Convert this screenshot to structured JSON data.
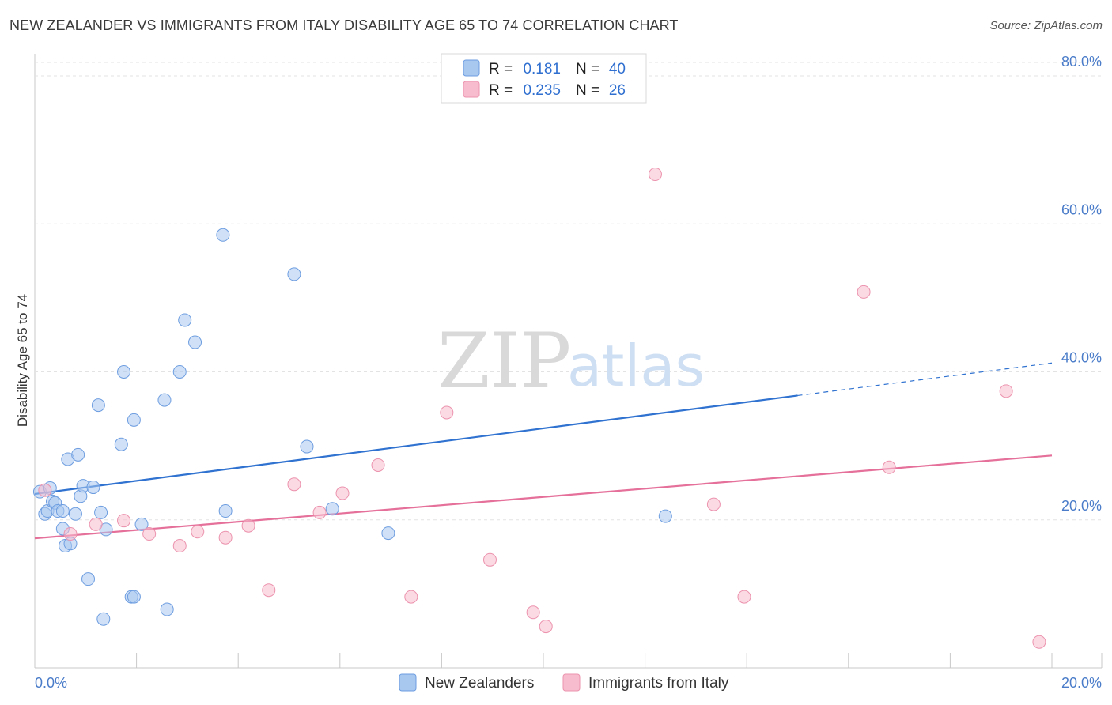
{
  "title": "NEW ZEALANDER VS IMMIGRANTS FROM ITALY DISABILITY AGE 65 TO 74 CORRELATION CHART",
  "source": "Source: ZipAtlas.com",
  "watermark": {
    "zip": "ZIP",
    "atlas": "atlas"
  },
  "legend": {
    "r_label": "R =",
    "n_label": "N =",
    "rows": [
      {
        "r": "0.181",
        "n": "40"
      },
      {
        "r": "0.235",
        "n": "26"
      }
    ]
  },
  "chart_data": {
    "type": "scatter",
    "title": "NEW ZEALANDER VS IMMIGRANTS FROM ITALY DISABILITY AGE 65 TO 74 CORRELATION CHART",
    "xlabel": "",
    "ylabel": "Disability Age 65 to 74",
    "xlim": [
      0,
      20
    ],
    "ylim": [
      0,
      80
    ],
    "x_tick_labels": [
      "0.0%",
      "20.0%"
    ],
    "y_tick_values": [
      20,
      40,
      60,
      80
    ],
    "y_tick_labels": [
      "20.0%",
      "40.0%",
      "60.0%",
      "80.0%"
    ],
    "grid": true,
    "legend_position": "top-center",
    "series": [
      {
        "name": "New Zealanders",
        "color": "#a9c8f0",
        "edge_color": "#6d9de0",
        "line_color": "#2f72d0",
        "r": 0.181,
        "n": 40,
        "trend": {
          "x0": 0.0,
          "y0": 23.5,
          "x1": 15.0,
          "y1": 36.8,
          "dashed_to_x": 20.0,
          "dashed_to_y": 41.2
        },
        "points": [
          [
            0.1,
            23.8
          ],
          [
            0.2,
            20.8
          ],
          [
            0.25,
            21.2
          ],
          [
            0.3,
            24.3
          ],
          [
            0.35,
            22.5
          ],
          [
            0.4,
            22.3
          ],
          [
            0.45,
            21.2
          ],
          [
            0.55,
            21.2
          ],
          [
            0.55,
            18.8
          ],
          [
            0.6,
            16.5
          ],
          [
            0.65,
            28.2
          ],
          [
            0.7,
            16.8
          ],
          [
            0.8,
            20.8
          ],
          [
            0.85,
            28.8
          ],
          [
            0.9,
            23.2
          ],
          [
            0.95,
            24.6
          ],
          [
            1.05,
            12.0
          ],
          [
            1.15,
            24.4
          ],
          [
            1.25,
            35.5
          ],
          [
            1.3,
            21.0
          ],
          [
            1.35,
            6.6
          ],
          [
            1.4,
            18.7
          ],
          [
            1.7,
            30.2
          ],
          [
            1.75,
            40.0
          ],
          [
            1.9,
            9.6
          ],
          [
            1.95,
            33.5
          ],
          [
            1.95,
            9.6
          ],
          [
            2.1,
            19.4
          ],
          [
            2.55,
            36.2
          ],
          [
            2.6,
            7.9
          ],
          [
            2.85,
            40.0
          ],
          [
            2.95,
            47.0
          ],
          [
            3.15,
            44.0
          ],
          [
            3.7,
            58.5
          ],
          [
            3.75,
            21.2
          ],
          [
            5.1,
            53.2
          ],
          [
            5.35,
            29.9
          ],
          [
            5.85,
            21.5
          ],
          [
            6.95,
            18.2
          ],
          [
            12.4,
            20.5
          ]
        ]
      },
      {
        "name": "Immigrants from Italy",
        "color": "#f7bccd",
        "edge_color": "#ec93ae",
        "line_color": "#e5709a",
        "r": 0.235,
        "n": 26,
        "trend": {
          "x0": 0.0,
          "y0": 17.5,
          "x1": 20.0,
          "y1": 28.7
        },
        "points": [
          [
            0.2,
            24.0
          ],
          [
            0.7,
            18.1
          ],
          [
            1.2,
            19.4
          ],
          [
            1.75,
            19.9
          ],
          [
            2.25,
            18.1
          ],
          [
            2.85,
            16.5
          ],
          [
            3.2,
            18.4
          ],
          [
            3.75,
            17.6
          ],
          [
            4.2,
            19.2
          ],
          [
            4.6,
            10.5
          ],
          [
            5.1,
            24.8
          ],
          [
            5.6,
            21.0
          ],
          [
            6.05,
            23.6
          ],
          [
            6.75,
            27.4
          ],
          [
            7.4,
            9.6
          ],
          [
            8.1,
            34.5
          ],
          [
            8.95,
            14.6
          ],
          [
            9.8,
            7.5
          ],
          [
            10.05,
            5.6
          ],
          [
            12.2,
            66.7
          ],
          [
            13.35,
            22.1
          ],
          [
            13.95,
            9.6
          ],
          [
            16.3,
            50.8
          ],
          [
            16.8,
            27.1
          ],
          [
            19.1,
            37.4
          ],
          [
            19.75,
            3.5
          ]
        ]
      }
    ]
  }
}
